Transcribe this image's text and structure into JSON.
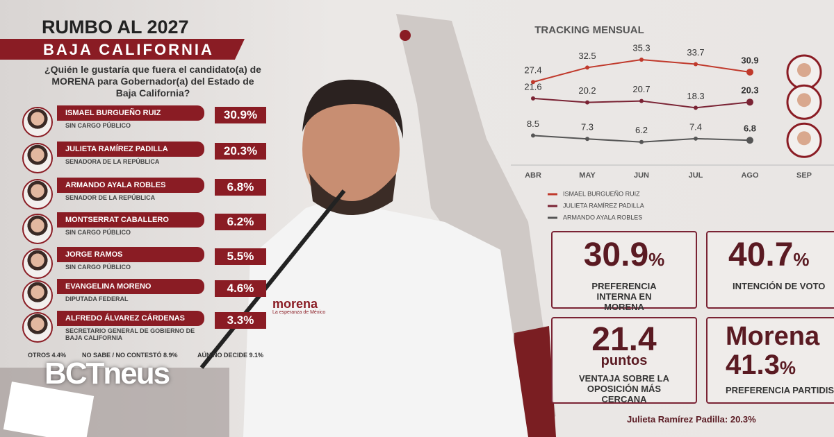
{
  "header": {
    "title": "RUMBO AL 2027",
    "subtitle": "BAJA CALIFORNIA",
    "question": "¿Quién le gustaría que fuera el candidato(a) de MORENA para Gobernador(a) del Estado de Baja California?"
  },
  "candidates": [
    {
      "name": "ISMAEL BURGUEÑO RUIZ",
      "role": "SIN CARGO PÚBLICO",
      "value": "30.9%"
    },
    {
      "name": "JULIETA RAMÍREZ PADILLA",
      "role": "SENADORA DE LA REPÚBLICA",
      "value": "20.3%"
    },
    {
      "name": "ARMANDO AYALA ROBLES",
      "role": "SENADOR DE LA REPÚBLICA",
      "value": "6.8%"
    },
    {
      "name": "MONTSERRAT CABALLERO",
      "role": "SIN CARGO PÚBLICO",
      "value": "6.2%"
    },
    {
      "name": "JORGE RAMOS",
      "role": "SIN CARGO PÚBLICO",
      "value": "5.5%"
    },
    {
      "name": "EVANGELINA MORENO",
      "role": "DIPUTADA FEDERAL",
      "value": "4.6%"
    },
    {
      "name": "ALFREDO ÁLVAREZ CÁRDENAS",
      "role": "SECRETARIO GENERAL DE GOBIERNO DE BAJA CALIFORNIA",
      "value": "3.3%"
    }
  ],
  "others": [
    {
      "label": "OTROS",
      "value": "4.4%"
    },
    {
      "label": "NO SABE / NO CONTESTÓ",
      "value": "8.9%"
    },
    {
      "label": "AÚN NO DECIDE",
      "value": "9.1%"
    }
  ],
  "brand": "BCTneus",
  "photo": {
    "logo": "morena",
    "tagline": "La esperanza de México"
  },
  "chart_data": {
    "type": "line",
    "title": "TRACKING MENSUAL",
    "categories": [
      "ABR",
      "MAY",
      "JUN",
      "JUL",
      "AGO",
      "SEP"
    ],
    "ylim": [
      0,
      38
    ],
    "series": [
      {
        "name": "ISMAEL BURGUEÑO RUIZ",
        "color": "#c0392b",
        "values": [
          27.4,
          32.5,
          35.3,
          33.7,
          30.9,
          null
        ]
      },
      {
        "name": "JULIETA RAMÍREZ PADILLA",
        "color": "#7a2334",
        "values": [
          21.6,
          20.2,
          20.7,
          18.3,
          20.3,
          null
        ]
      },
      {
        "name": "ARMANDO AYALA ROBLES",
        "color": "#555555",
        "values": [
          8.5,
          7.3,
          6.2,
          7.4,
          6.8,
          null
        ]
      }
    ]
  },
  "stats": [
    {
      "value": "30.9",
      "unit": "%",
      "label": "PREFERENCIA INTERNA EN MORENA"
    },
    {
      "value": "40.7",
      "unit": "%",
      "label": "INTENCIÓN DE VOTO"
    },
    {
      "value": "21.4",
      "unit": "puntos",
      "label": "VENTAJA SOBRE LA OPOSICIÓN MÁS CERCANA"
    },
    {
      "party": "Morena",
      "value": "41.3",
      "unit": "%",
      "label": "PREFERENCIA PARTIDISTA"
    }
  ],
  "footer": "Julieta Ramírez Padilla: 20.3%"
}
